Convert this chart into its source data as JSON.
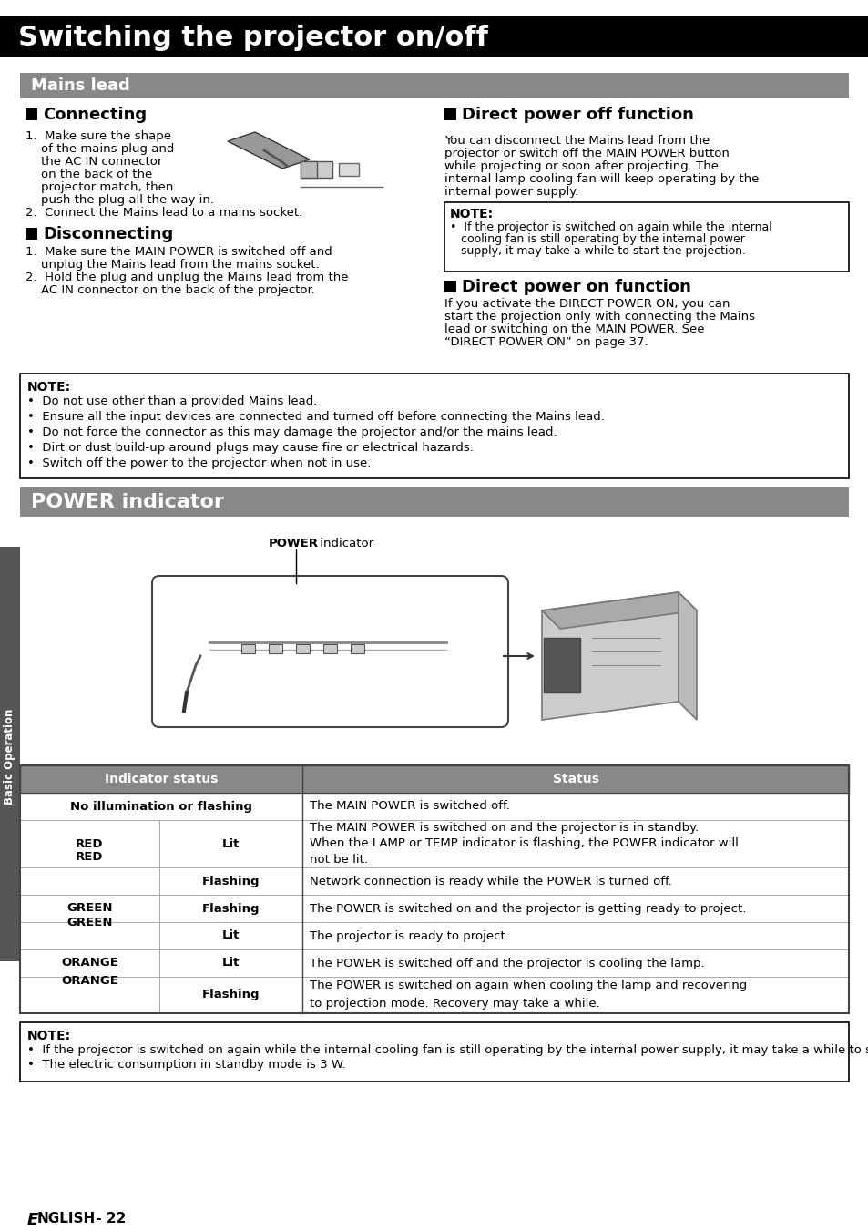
{
  "page_bg": "#ffffff",
  "title_bg": "#000000",
  "title_text": "Switching the projector on/off",
  "title_text_color": "#ffffff",
  "section_bg": "#888888",
  "section_text_color": "#ffffff",
  "sidebar_bg": "#555555",
  "sidebar_text": "Basic Operation",
  "sidebar_text_color": "#ffffff",
  "mains_lead_title": "Mains lead",
  "power_indicator_title": "POWER indicator",
  "connecting_title": "Connecting",
  "disconnecting_title": "Disconnecting",
  "direct_off_title": "Direct power off function",
  "direct_on_title": "Direct power on function",
  "note_box_title": "NOTE:",
  "note_box_items": [
    "Do not use other than a provided Mains lead.",
    "Ensure all the input devices are connected and turned off before connecting the Mains lead.",
    "Do not force the connector as this may damage the projector and/or the mains lead.",
    "Dirt or dust build-up around plugs may cause fire or electrical hazards.",
    "Switch off the power to the projector when not in use."
  ],
  "power_label": "POWER indicator",
  "table_header_bg": "#888888",
  "table_header_text_color": "#ffffff",
  "table_border": "#555555",
  "bottom_note_title": "NOTE:",
  "bottom_note_items": [
    "If the projector is switched on again while the internal cooling fan is still operating by the internal power supply, it may take a while to start the projection.",
    "The electric consumption in standby mode is 3 W."
  ],
  "footer_text": "ENGLISH - 22"
}
